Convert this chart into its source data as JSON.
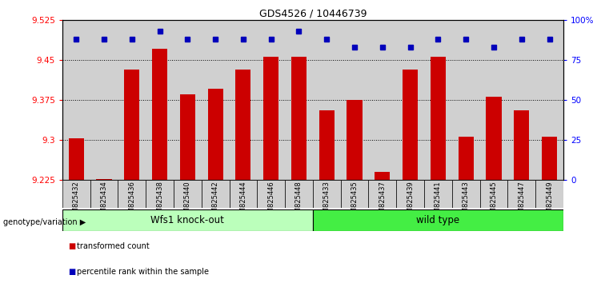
{
  "title": "GDS4526 / 10446739",
  "samples": [
    "GSM825432",
    "GSM825434",
    "GSM825436",
    "GSM825438",
    "GSM825440",
    "GSM825442",
    "GSM825444",
    "GSM825446",
    "GSM825448",
    "GSM825433",
    "GSM825435",
    "GSM825437",
    "GSM825439",
    "GSM825441",
    "GSM825443",
    "GSM825445",
    "GSM825447",
    "GSM825449"
  ],
  "bar_values": [
    9.302,
    9.226,
    9.432,
    9.47,
    9.385,
    9.395,
    9.432,
    9.455,
    9.455,
    9.355,
    9.375,
    9.24,
    9.432,
    9.455,
    9.305,
    9.38,
    9.355,
    9.305
  ],
  "percentile_values": [
    88,
    88,
    88,
    93,
    88,
    88,
    88,
    88,
    93,
    88,
    83,
    83,
    83,
    88,
    88,
    83,
    88,
    88
  ],
  "ymin": 9.225,
  "ymax": 9.525,
  "yticks": [
    9.225,
    9.3,
    9.375,
    9.45,
    9.525
  ],
  "ytick_labels": [
    "9.225",
    "9.3",
    "9.375",
    "9.45",
    "9.525"
  ],
  "right_yticks": [
    0,
    25,
    50,
    75,
    100
  ],
  "right_ytick_labels": [
    "0",
    "25",
    "50",
    "75",
    "100%"
  ],
  "grid_lines": [
    9.3,
    9.375,
    9.45
  ],
  "group1_label": "Wfs1 knock-out",
  "group2_label": "wild type",
  "group1_count": 9,
  "group2_count": 9,
  "bar_color": "#cc0000",
  "dot_color": "#0000bb",
  "group1_bg": "#ffffff",
  "group2_bg": "#ffffff",
  "sample_box_color": "#d0d0d0",
  "group1_color": "#bbffbb",
  "group2_color": "#44ee44",
  "legend_bar_label": "transformed count",
  "legend_dot_label": "percentile rank within the sample",
  "bar_width": 0.55,
  "dot_size": 5
}
